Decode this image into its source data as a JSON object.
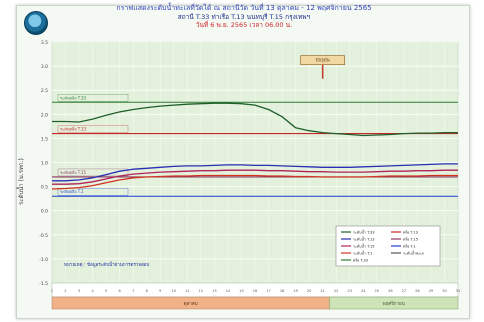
{
  "header": {
    "title": "กราฟแสดงระดับน้ำทะเลที่วัดได้ ณ สถานีวัด วันที่ 13 ตุลาคม - 12 พฤศจิกายน 2565",
    "subtitle": "สถานี T.33 ท่าเรือ  T.13 นนทบุรี  T.15 กรุงเทพฯ",
    "date_line": "วันที่ 6 พ.ย. 2565 เวลา 06.00 น."
  },
  "chart_data": {
    "type": "line",
    "ylabel": "ระดับน้ำ (ม.รทก.)",
    "y_ticks": [
      "3.5",
      "3.0",
      "2.5",
      "2.0",
      "1.5",
      "1.0",
      "0.5",
      "0.0",
      "-0.5",
      "-1.0",
      "-1.5"
    ],
    "x": [
      1,
      2,
      3,
      4,
      5,
      6,
      7,
      8,
      9,
      10,
      11,
      12,
      13,
      14,
      15,
      16,
      17,
      18,
      19,
      20,
      21,
      22,
      23,
      24,
      25,
      26,
      27,
      28,
      29,
      30,
      31
    ],
    "ylim": [
      -1.5,
      3.5
    ],
    "reference_lines": [
      {
        "label": "ระดับตลิ่ง T.33",
        "value": 2.25,
        "color": "#2e7d32"
      },
      {
        "label": "ระดับตลิ่ง T.13",
        "value": 1.6,
        "color": "#c62828"
      },
      {
        "label": "ระดับตลิ่ง T.15",
        "value": 0.7,
        "color": "#8b3a62"
      },
      {
        "label": "ระดับตลิ่ง T.1",
        "value": 0.3,
        "color": "#1e3fd0"
      }
    ],
    "series": [
      {
        "name": "T.33",
        "color": "#1f5f2a",
        "values": [
          1.85,
          1.85,
          1.84,
          1.9,
          1.98,
          2.05,
          2.1,
          2.14,
          2.17,
          2.19,
          2.21,
          2.22,
          2.23,
          2.23,
          2.22,
          2.19,
          2.1,
          1.95,
          1.72,
          1.66,
          1.62,
          1.6,
          1.58,
          1.56,
          1.57,
          1.58,
          1.6,
          1.61,
          1.61,
          1.62,
          1.62
        ]
      },
      {
        "name": "T.13",
        "color": "#2a2fb5",
        "values": [
          0.62,
          0.62,
          0.64,
          0.68,
          0.75,
          0.82,
          0.86,
          0.88,
          0.9,
          0.92,
          0.93,
          0.93,
          0.94,
          0.95,
          0.95,
          0.94,
          0.94,
          0.93,
          0.92,
          0.91,
          0.9,
          0.9,
          0.9,
          0.91,
          0.92,
          0.93,
          0.94,
          0.95,
          0.96,
          0.97,
          0.97
        ]
      },
      {
        "name": "T.15",
        "color": "#b0245a",
        "values": [
          0.55,
          0.55,
          0.56,
          0.6,
          0.66,
          0.72,
          0.76,
          0.78,
          0.8,
          0.81,
          0.82,
          0.83,
          0.83,
          0.84,
          0.84,
          0.84,
          0.83,
          0.83,
          0.82,
          0.81,
          0.81,
          0.8,
          0.8,
          0.8,
          0.81,
          0.82,
          0.82,
          0.83,
          0.83,
          0.84,
          0.84
        ]
      },
      {
        "name": "T.1",
        "color": "#d2341f",
        "values": [
          0.45,
          0.46,
          0.48,
          0.52,
          0.58,
          0.64,
          0.68,
          0.7,
          0.71,
          0.72,
          0.72,
          0.73,
          0.73,
          0.73,
          0.73,
          0.73,
          0.72,
          0.72,
          0.71,
          0.71,
          0.7,
          0.7,
          0.7,
          0.7,
          0.71,
          0.72,
          0.72,
          0.72,
          0.73,
          0.73,
          0.73
        ]
      }
    ],
    "annotation": "ปัจจุบัน",
    "note": "หมายเหตุ : ข้อมูลระดับน้ำผ่านการตรวจสอบ",
    "x_groups": [
      {
        "label": "ตุลาคม",
        "color": "#f1b28a"
      },
      {
        "label": "พฤศจิกายน",
        "color": "#cfe3b8"
      }
    ],
    "legend": [
      "ระดับน้ำ T.33",
      "ระดับน้ำ T.13",
      "ระดับน้ำ T.15",
      "ระดับน้ำ T.1",
      "ตลิ่ง T.33",
      "ตลิ่ง T.13",
      "ตลิ่ง T.15",
      "ตลิ่ง T.1",
      "ระดับน้ำทะเล"
    ],
    "colors": {
      "plot_bg": "#e3f0dc",
      "grid": "#ffffff"
    }
  }
}
